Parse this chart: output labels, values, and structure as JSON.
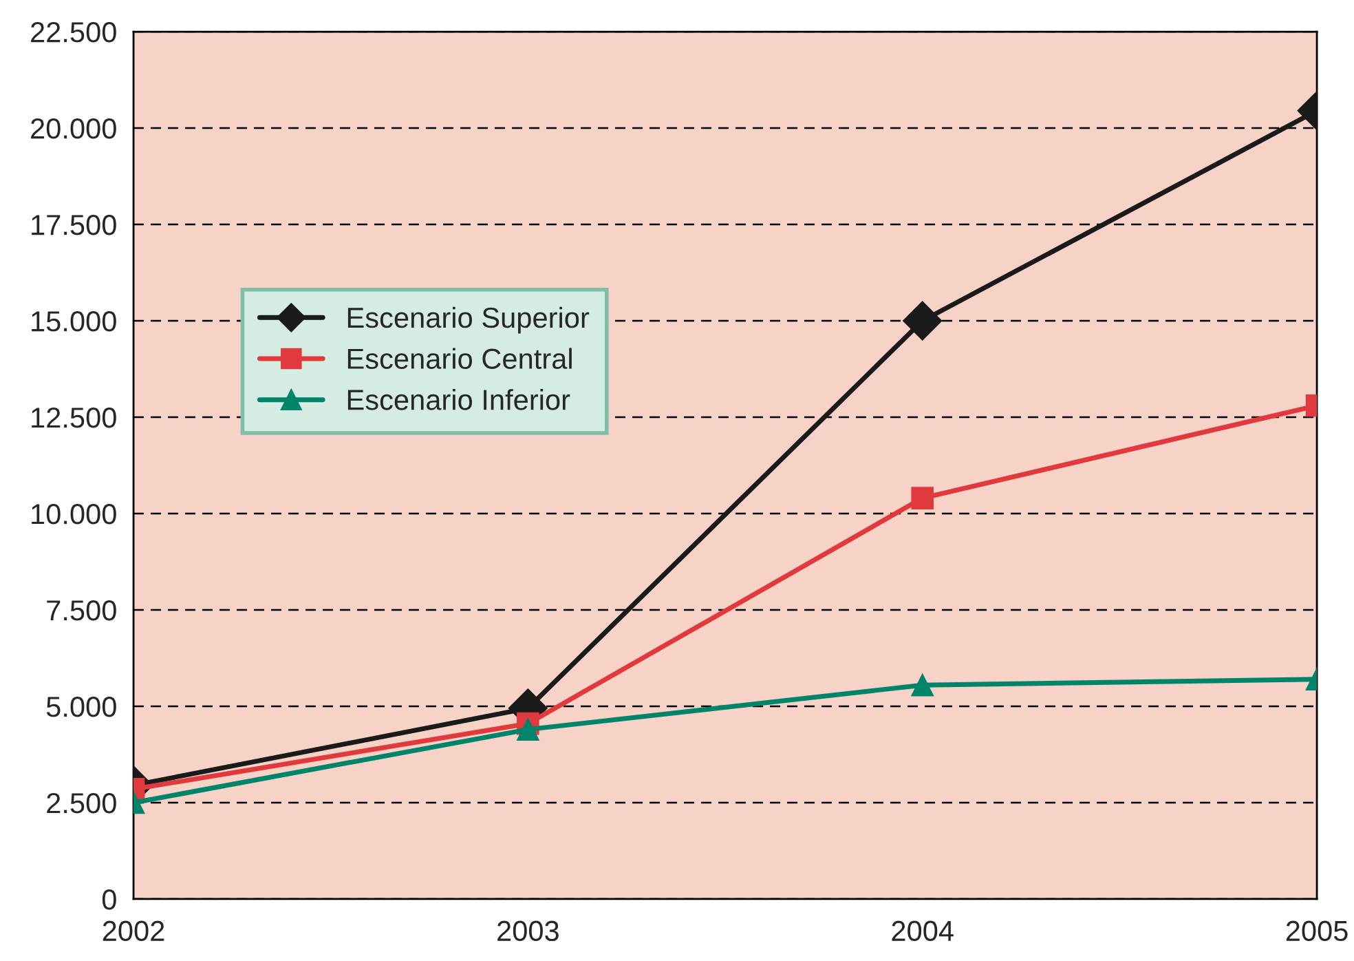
{
  "chart_data": {
    "type": "line",
    "x": [
      2002,
      2003,
      2004,
      2005
    ],
    "series": [
      {
        "name": "Escenario Superior",
        "color": "#1a1a1a",
        "marker": "diamond",
        "values": [
          2950,
          4950,
          15000,
          20450
        ]
      },
      {
        "name": "Escenario Central",
        "color": "#e03a3e",
        "marker": "square",
        "values": [
          2850,
          4550,
          10400,
          12800
        ]
      },
      {
        "name": "Escenario Inferior",
        "color": "#00856a",
        "marker": "triangle",
        "values": [
          2500,
          4400,
          5550,
          5700
        ]
      }
    ],
    "xlim": [
      2002,
      2005
    ],
    "xticks": [
      2002,
      2003,
      2004,
      2005
    ],
    "ylim": [
      0,
      22500
    ],
    "yticks": [
      0,
      {
        "value": 2500,
        "label": "2.500"
      },
      {
        "value": 5000,
        "label": "5.000"
      },
      {
        "value": 7500,
        "label": "7.500"
      },
      {
        "value": 10000,
        "label": "10.000"
      },
      {
        "value": 12500,
        "label": "12.500"
      },
      {
        "value": 15000,
        "label": "15.000"
      },
      {
        "value": 17500,
        "label": "17.500"
      },
      {
        "value": 20000,
        "label": "20.000"
      },
      {
        "value": 22500,
        "label": "22.500"
      }
    ],
    "grid": "y",
    "legend": "left",
    "line_style": "solid"
  }
}
